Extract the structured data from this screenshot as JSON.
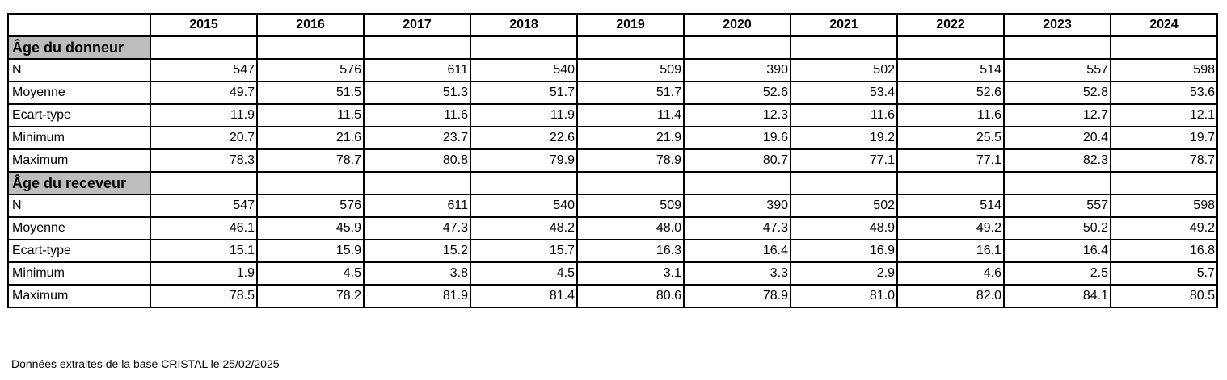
{
  "table": {
    "years": [
      "2015",
      "2016",
      "2017",
      "2018",
      "2019",
      "2020",
      "2021",
      "2022",
      "2023",
      "2024"
    ],
    "sections": [
      {
        "title": "Âge du donneur",
        "rows": [
          {
            "label": "N",
            "values": [
              "547",
              "576",
              "611",
              "540",
              "509",
              "390",
              "502",
              "514",
              "557",
              "598"
            ]
          },
          {
            "label": "Moyenne",
            "values": [
              "49.7",
              "51.5",
              "51.3",
              "51.7",
              "51.7",
              "52.6",
              "53.4",
              "52.6",
              "52.8",
              "53.6"
            ]
          },
          {
            "label": "Ecart-type",
            "values": [
              "11.9",
              "11.5",
              "11.6",
              "11.9",
              "11.4",
              "12.3",
              "11.6",
              "11.6",
              "12.7",
              "12.1"
            ]
          },
          {
            "label": "Minimum",
            "values": [
              "20.7",
              "21.6",
              "23.7",
              "22.6",
              "21.9",
              "19.6",
              "19.2",
              "25.5",
              "20.4",
              "19.7"
            ]
          },
          {
            "label": "Maximum",
            "values": [
              "78.3",
              "78.7",
              "80.8",
              "79.9",
              "78.9",
              "80.7",
              "77.1",
              "77.1",
              "82.3",
              "78.7"
            ]
          }
        ]
      },
      {
        "title": "Âge du receveur",
        "rows": [
          {
            "label": "N",
            "values": [
              "547",
              "576",
              "611",
              "540",
              "509",
              "390",
              "502",
              "514",
              "557",
              "598"
            ]
          },
          {
            "label": "Moyenne",
            "values": [
              "46.1",
              "45.9",
              "47.3",
              "48.2",
              "48.0",
              "47.3",
              "48.9",
              "49.2",
              "50.2",
              "49.2"
            ]
          },
          {
            "label": "Ecart-type",
            "values": [
              "15.1",
              "15.9",
              "15.2",
              "15.7",
              "16.3",
              "16.4",
              "16.9",
              "16.1",
              "16.4",
              "16.8"
            ]
          },
          {
            "label": "Minimum",
            "values": [
              "1.9",
              "4.5",
              "3.8",
              "4.5",
              "3.1",
              "3.3",
              "2.9",
              "4.6",
              "2.5",
              "5.7"
            ]
          },
          {
            "label": "Maximum",
            "values": [
              "78.5",
              "78.2",
              "81.9",
              "81.4",
              "80.6",
              "78.9",
              "81.0",
              "82.0",
              "84.1",
              "80.5"
            ]
          }
        ]
      }
    ],
    "section_bg": "#bdbdbd"
  },
  "footnote": "Données extraites de la base CRISTAL le 25/02/2025"
}
